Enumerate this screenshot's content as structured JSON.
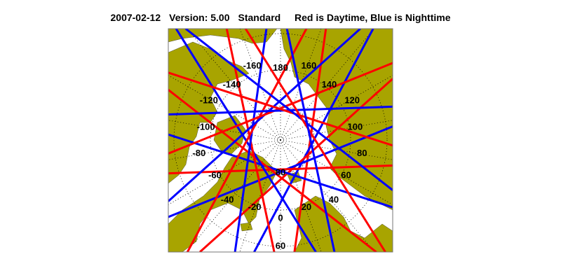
{
  "title": {
    "date": "2007-02-12",
    "version": "Version: 5.00",
    "product": "Standard",
    "legend_text": "Red is Daytime, Blue is Nighttime"
  },
  "map": {
    "projection": "north polar stereographic",
    "colors": {
      "land": "#a8a400",
      "ocean": "#ffffff",
      "day_track": "#ff0000",
      "night_track": "#0000ff",
      "grid": "#000000"
    },
    "longitude_labels": [
      "180",
      "160",
      "140",
      "120",
      "100",
      "80",
      "60",
      "40",
      "20",
      "0",
      "-20",
      "-40",
      "-60",
      "-80",
      "-100",
      "-120",
      "-140",
      "-160"
    ],
    "latitude_labels": [
      "80",
      "60"
    ]
  }
}
